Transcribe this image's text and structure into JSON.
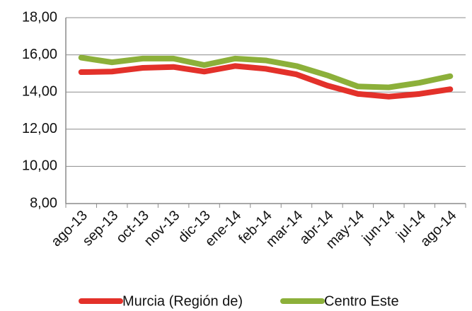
{
  "chart_data": {
    "type": "line",
    "categories": [
      "ago-13",
      "sep-13",
      "oct-13",
      "nov-13",
      "dic-13",
      "ene-14",
      "feb-14",
      "mar-14",
      "abr-14",
      "may-14",
      "jun-14",
      "jul-14",
      "ago-14"
    ],
    "series": [
      {
        "name": "Murcia (Región de)",
        "color": "#e3312a",
        "values": [
          15.07,
          15.1,
          15.3,
          15.35,
          15.1,
          15.4,
          15.25,
          14.95,
          14.35,
          13.9,
          13.75,
          13.9,
          14.15
        ]
      },
      {
        "name": "Centro Este",
        "color": "#8cb03a",
        "values": [
          15.85,
          15.6,
          15.8,
          15.8,
          15.45,
          15.8,
          15.7,
          15.4,
          14.9,
          14.3,
          14.25,
          14.5,
          14.85
        ]
      }
    ],
    "ylim": [
      8,
      18
    ],
    "yticks": [
      {
        "value": 8,
        "label": "8,00"
      },
      {
        "value": 10,
        "label": "10,00"
      },
      {
        "value": 12,
        "label": "12,00"
      },
      {
        "value": 14,
        "label": "14,00"
      },
      {
        "value": 16,
        "label": "16,00"
      },
      {
        "value": 18,
        "label": "18,00"
      }
    ],
    "grid": true,
    "legend": "bottom"
  }
}
